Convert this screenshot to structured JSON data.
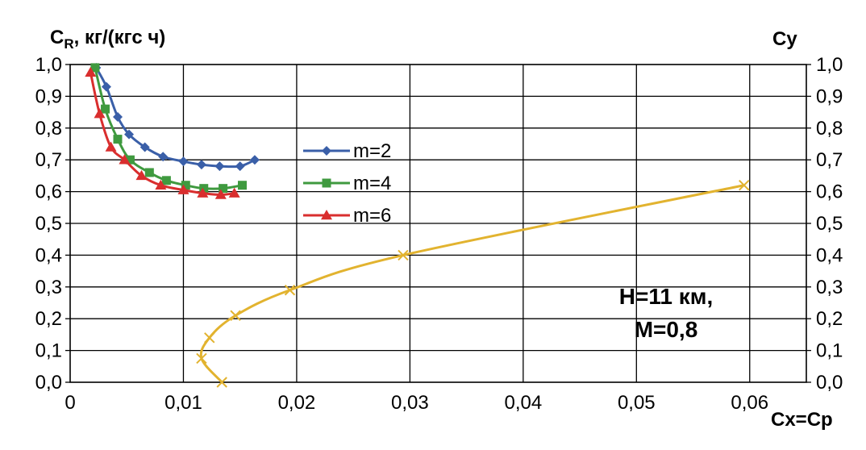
{
  "chart_data": {
    "type": "line",
    "ylabel_left_main": "C",
    "ylabel_left_sub": "R",
    "ylabel_left_rest": ", кг/(кгс ч)",
    "ylabel_right": "Cy",
    "xlabel": "Cx=Cp",
    "annotation": [
      "H=11 км,",
      "M=0,8"
    ],
    "xlim": [
      0,
      0.065
    ],
    "ylim": [
      0,
      1.0
    ],
    "x_ticks": [
      0,
      0.01,
      0.02,
      0.03,
      0.04,
      0.05,
      0.06
    ],
    "x_tick_labels": [
      "0",
      "0,01",
      "0,02",
      "0,03",
      "0,04",
      "0,05",
      "0,06"
    ],
    "y_ticks": [
      0,
      0.1,
      0.2,
      0.3,
      0.4,
      0.5,
      0.6,
      0.7,
      0.8,
      0.9,
      1.0
    ],
    "y_tick_labels": [
      "0,0",
      "0,1",
      "0,2",
      "0,3",
      "0,4",
      "0,5",
      "0,6",
      "0,7",
      "0,8",
      "0,9",
      "1,0"
    ],
    "grid": true,
    "legend_position": "center-left",
    "series": [
      {
        "name": "m=2",
        "color": "#3a5fa8",
        "marker": "diamond",
        "x": [
          0.0023,
          0.0032,
          0.0042,
          0.0052,
          0.0066,
          0.0082,
          0.01,
          0.0116,
          0.0132,
          0.015,
          0.0163
        ],
        "y": [
          0.99,
          0.93,
          0.835,
          0.78,
          0.74,
          0.71,
          0.695,
          0.685,
          0.68,
          0.68,
          0.7
        ]
      },
      {
        "name": "m=4",
        "color": "#3f9a3f",
        "marker": "square",
        "x": [
          0.0022,
          0.0031,
          0.0042,
          0.0053,
          0.007,
          0.0085,
          0.0102,
          0.0118,
          0.0135,
          0.0152
        ],
        "y": [
          0.99,
          0.86,
          0.765,
          0.7,
          0.66,
          0.635,
          0.62,
          0.61,
          0.61,
          0.62
        ]
      },
      {
        "name": "m=6",
        "color": "#d92e2e",
        "marker": "triangle",
        "x": [
          0.0018,
          0.0026,
          0.0036,
          0.0048,
          0.0063,
          0.008,
          0.01,
          0.0117,
          0.0133,
          0.0145
        ],
        "y": [
          0.975,
          0.845,
          0.74,
          0.7,
          0.65,
          0.62,
          0.605,
          0.595,
          0.59,
          0.595
        ]
      },
      {
        "name": "",
        "color": "#e2b32f",
        "marker": "x",
        "x": [
          0.0134,
          0.0116,
          0.0123,
          0.0146,
          0.0194,
          0.0294,
          0.0595
        ],
        "y": [
          0.0,
          0.075,
          0.14,
          0.21,
          0.29,
          0.4,
          0.62
        ]
      }
    ]
  }
}
